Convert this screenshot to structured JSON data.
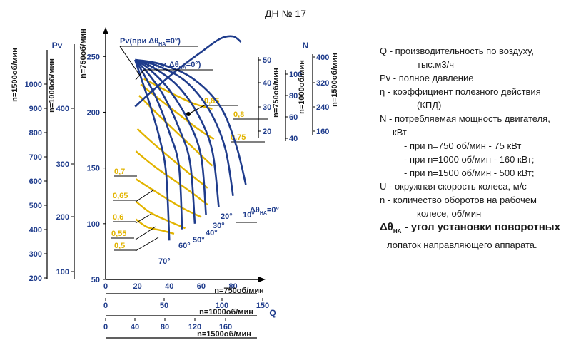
{
  "title": "ДН № 17",
  "chart_data": {
    "type": "line",
    "title": "ДН № 17",
    "left_axes": [
      {
        "label": "n=1500об/мин",
        "ticks": [
          1000,
          900,
          800,
          700,
          600,
          500,
          400,
          300,
          200
        ]
      },
      {
        "label": "n=1000об/мин",
        "ticks": [
          400,
          300,
          200,
          100
        ]
      },
      {
        "label": "n=750об/мин",
        "ticks": [
          250,
          200,
          150,
          100,
          50
        ]
      }
    ],
    "left_axes_title": "Pv",
    "bottom_axes": [
      {
        "label": "n=750об/мин",
        "ticks": [
          0,
          20,
          40,
          60,
          80
        ]
      },
      {
        "label": "n=1000об/мин",
        "ticks": [
          0,
          50,
          100,
          150
        ]
      },
      {
        "label": "n=1500об/мин",
        "ticks": [
          0,
          40,
          80,
          120,
          160
        ]
      }
    ],
    "bottom_axes_title": "Q",
    "right_axes": [
      {
        "label": "n=750об/мин",
        "ticks": [
          50,
          40,
          30,
          20
        ]
      },
      {
        "label": "n=1000об/мин",
        "ticks": [
          100,
          80,
          60,
          40
        ]
      },
      {
        "label": "n=1500об/мин",
        "ticks": [
          400,
          320,
          240,
          160
        ]
      }
    ],
    "right_axes_title": "N",
    "curve_labels": {
      "pv": "Pv(при Δθ",
      "pv_tail": "=0°)",
      "n": "N(при Δθ",
      "n_tail": "=0°)",
      "sub": "НА",
      "theta": "Δθ",
      "theta_tail": "=0°"
    },
    "pressure_curves": [
      {
        "angle": "10°",
        "points": [
          [
            18.5,
            247
          ],
          [
            35,
            243
          ],
          [
            55,
            230
          ],
          [
            72,
            205
          ],
          [
            82,
            170
          ],
          [
            88,
            135
          ]
        ]
      },
      {
        "angle": "20°",
        "points": [
          [
            18.5,
            247
          ],
          [
            32,
            242
          ],
          [
            50,
            228
          ],
          [
            65,
            202
          ],
          [
            75,
            168
          ],
          [
            80,
            125
          ]
        ]
      },
      {
        "angle": "30°",
        "points": [
          [
            18.5,
            247
          ],
          [
            30,
            240
          ],
          [
            45,
            224
          ],
          [
            58,
            198
          ],
          [
            67,
            165
          ],
          [
            71,
            115
          ]
        ]
      },
      {
        "angle": "40°",
        "points": [
          [
            18.5,
            247
          ],
          [
            28,
            238
          ],
          [
            40,
            220
          ],
          [
            52,
            192
          ],
          [
            60,
            160
          ],
          [
            63,
            108
          ]
        ]
      },
      {
        "angle": "50°",
        "points": [
          [
            18.5,
            247
          ],
          [
            26,
            236
          ],
          [
            36,
            216
          ],
          [
            46,
            186
          ],
          [
            53,
            155
          ],
          [
            56,
            100
          ]
        ]
      },
      {
        "angle": "60°",
        "points": [
          [
            18.5,
            247
          ],
          [
            24,
            234
          ],
          [
            32,
            212
          ],
          [
            40,
            182
          ],
          [
            46,
            152
          ],
          [
            48,
            95
          ]
        ]
      },
      {
        "angle": "70°",
        "points": [
          [
            18.5,
            247
          ],
          [
            22,
            232
          ],
          [
            28,
            206
          ],
          [
            34,
            176
          ],
          [
            38,
            145
          ],
          [
            40,
            85
          ]
        ]
      }
    ],
    "power_curve": [
      [
        18.5,
        205
      ],
      [
        30,
        220
      ],
      [
        45,
        238
      ],
      [
        60,
        254
      ],
      [
        72,
        266
      ],
      [
        80,
        268
      ],
      [
        85,
        263
      ]
    ],
    "efficiency_curves": [
      {
        "label": "0,85",
        "points": [
          [
            24,
            230
          ],
          [
            40,
            218
          ],
          [
            55,
            208
          ],
          [
            67,
            203
          ]
        ]
      },
      {
        "label": "0,8",
        "points": [
          [
            22,
            225
          ],
          [
            38,
            207
          ],
          [
            58,
            185
          ],
          [
            68,
            176
          ]
        ]
      },
      {
        "label": "0,75",
        "points": [
          [
            21,
            215
          ],
          [
            35,
            195
          ],
          [
            55,
            168
          ],
          [
            67,
            152
          ]
        ]
      },
      {
        "label": "0,7",
        "points": [
          [
            20,
            185
          ],
          [
            30,
            172
          ],
          [
            50,
            148
          ],
          [
            64,
            132
          ]
        ]
      },
      {
        "label": "0,65",
        "points": [
          [
            19,
            165
          ],
          [
            32,
            150
          ],
          [
            52,
            130
          ],
          [
            64,
            117
          ]
        ]
      },
      {
        "label": "0,6",
        "points": [
          [
            19,
            140
          ],
          [
            30,
            130
          ],
          [
            47,
            115
          ],
          [
            60,
            106
          ]
        ]
      },
      {
        "label": "0,55",
        "points": [
          [
            19,
            120
          ],
          [
            28,
            110
          ],
          [
            40,
            102
          ],
          [
            50,
            96
          ]
        ]
      },
      {
        "label": "0,5",
        "points": [
          [
            19,
            104
          ],
          [
            26,
            97
          ],
          [
            35,
            94
          ],
          [
            43,
            91
          ]
        ]
      }
    ]
  },
  "legend": [
    {
      "text": "Q - производительность по воздуху,",
      "style": "in0"
    },
    {
      "text": "тыс.м3/ч",
      "style": "in3"
    },
    {
      "text": "Pv - полное давление",
      "style": "in0"
    },
    {
      "text": "η - коэффициент полезного действия",
      "style": "in0"
    },
    {
      "text": "(КПД)",
      "style": "in3"
    },
    {
      "text": "N - потребляемая мощность двигателя,",
      "style": "in0"
    },
    {
      "text": "кВт",
      "style": "in1"
    },
    {
      "text": "- при n=750 об/мин - 75 кВт",
      "style": "sub"
    },
    {
      "text": "- при n=1000 об/мин - 160 кВт;",
      "style": "sub"
    },
    {
      "text": "- при n=1500 об/мин - 500 кВт;",
      "style": "sub"
    },
    {
      "text": "U - окружная скорость колеса, м/с",
      "style": "in0"
    },
    {
      "text": "n - количество оборотов на рабочем",
      "style": "in0"
    },
    {
      "text": "колесе, об/мин",
      "style": "in3"
    },
    {
      "text": "Δθ",
      "style": "big",
      "sub": "НА",
      "tail": " - угол  установки поворотных"
    },
    {
      "text": "лопаток направляющего аппарата.",
      "style": "in2"
    }
  ],
  "colors": {
    "blue": "#1f3c8c",
    "gold": "#e2b400",
    "axis": "#1f3c8c"
  }
}
